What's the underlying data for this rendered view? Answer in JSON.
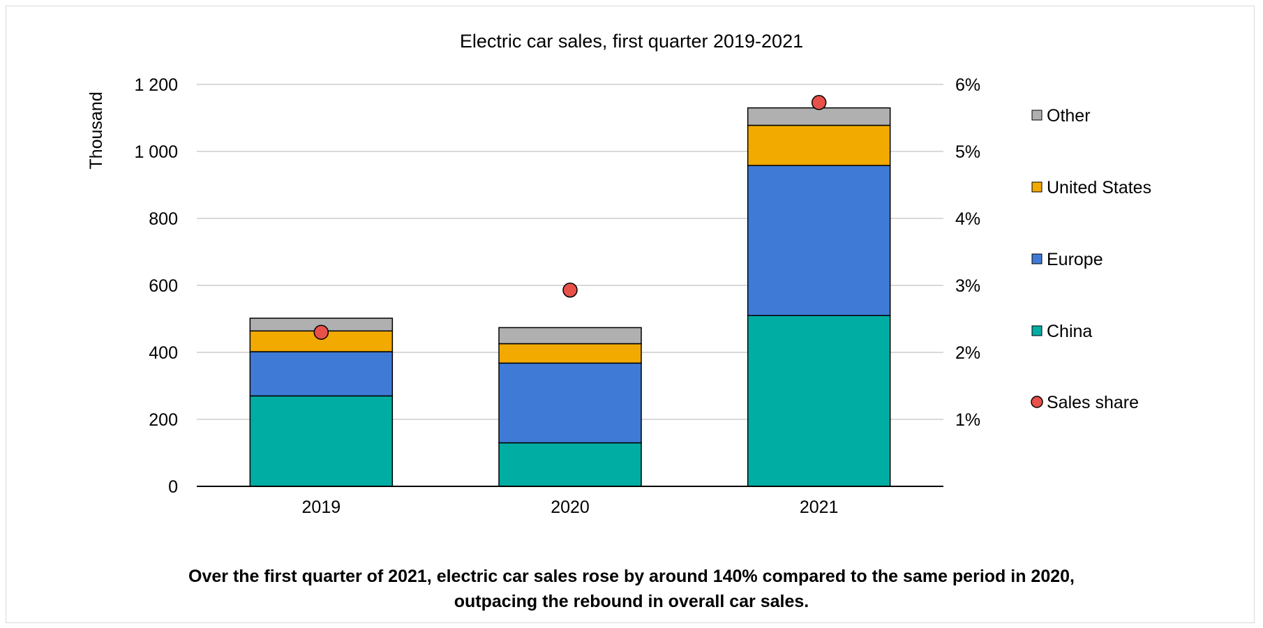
{
  "chart_data": {
    "type": "bar",
    "stacked": true,
    "title": "Electric car sales, first quarter 2019-2021",
    "ylabel": "Thousand",
    "ylim": [
      0,
      1200
    ],
    "yticks": [
      0,
      200,
      400,
      600,
      800,
      1000,
      1200
    ],
    "ytick_labels": [
      "0",
      "200",
      "400",
      "600",
      "800",
      "1 000",
      "1 200"
    ],
    "y2lim": [
      0,
      6
    ],
    "y2ticks": [
      1,
      2,
      3,
      4,
      5,
      6
    ],
    "y2tick_labels": [
      "1%",
      "2%",
      "3%",
      "4%",
      "5%",
      "6%"
    ],
    "categories": [
      "2019",
      "2020",
      "2021"
    ],
    "grid": true,
    "legend_position": "right",
    "series": [
      {
        "name": "China",
        "values": [
          270,
          130,
          510
        ],
        "color": "#00ada3"
      },
      {
        "name": "Europe",
        "values": [
          132,
          238,
          448
        ],
        "color": "#3f7bd6"
      },
      {
        "name": "United States",
        "values": [
          62,
          58,
          120
        ],
        "color": "#f2a900"
      },
      {
        "name": "Other",
        "values": [
          38,
          48,
          52
        ],
        "color": "#b0b0b0"
      }
    ],
    "line_series": {
      "name": "Sales share",
      "values": [
        2.3,
        2.93,
        5.73
      ],
      "axis": "right",
      "color": "#e8504a"
    }
  },
  "caption": {
    "line1": "Over the first quarter of 2021, electric car sales rose by around 140% compared to the same period in 2020,",
    "line2": "outpacing the rebound in overall car sales."
  }
}
